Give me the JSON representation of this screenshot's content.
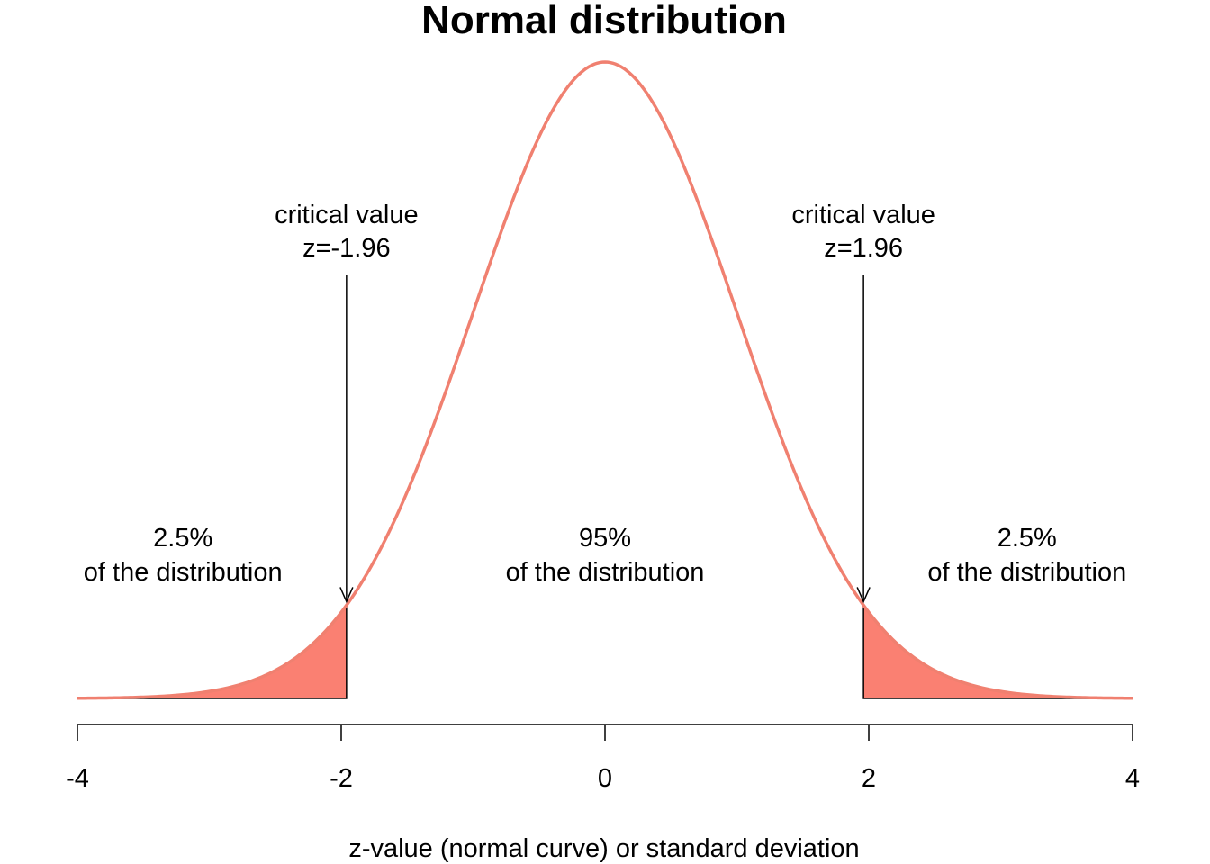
{
  "chart_data": {
    "type": "area",
    "title": "Normal distribution",
    "xlabel": "z-value (normal curve) or standard deviation",
    "ylabel": "",
    "xlim": [
      -4,
      4
    ],
    "x_ticks": [
      "-4",
      "-2",
      "0",
      "2",
      "4"
    ],
    "x_tick_values": [
      -4,
      -2,
      0,
      2,
      4
    ],
    "y_axis_shown": false,
    "grid": false,
    "curve": {
      "function": "standard normal density",
      "mean": 0,
      "sd": 1,
      "color": "#F08070"
    },
    "shaded_regions": [
      {
        "from": -4,
        "to": -1.96,
        "color": "#FA8072"
      },
      {
        "from": 1.96,
        "to": 4,
        "color": "#FA8072"
      }
    ],
    "critical_values": [
      {
        "x": -1.96,
        "line1": "critical value",
        "line2": "z=-1.96"
      },
      {
        "x": 1.96,
        "line1": "critical value",
        "line2": "z=1.96"
      }
    ],
    "region_labels": [
      {
        "x": -3.2,
        "line1": "2.5%",
        "line2": "of the distribution"
      },
      {
        "x": 0,
        "line1": "95%",
        "line2": "of the distribution"
      },
      {
        "x": 3.2,
        "line1": "2.5%",
        "line2": "of the distribution"
      }
    ]
  }
}
